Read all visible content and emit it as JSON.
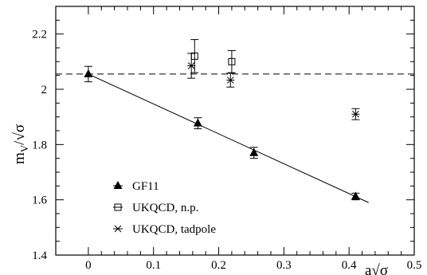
{
  "chart_data": {
    "type": "scatter",
    "xlabel": "a√σ",
    "ylabel": "m_V/√σ",
    "xlim": [
      -0.05,
      0.5
    ],
    "ylim": [
      1.4,
      2.3
    ],
    "x_ticks": [
      0,
      0.1,
      0.2,
      0.3,
      0.4,
      0.5
    ],
    "x_tick_labels": [
      "0",
      "0.1",
      "0.2",
      "0.3",
      "0.4",
      "0.5"
    ],
    "y_ticks": [
      1.4,
      1.6,
      1.8,
      2.0,
      2.2
    ],
    "y_tick_labels": [
      "1.4",
      "1.6",
      "1.8",
      "2",
      "2.2"
    ],
    "grid": false,
    "legend_position": "bottom-left",
    "series": [
      {
        "name": "GF11",
        "marker": "filled-triangle",
        "points": [
          {
            "x": 0.0,
            "y": 2.055,
            "err": 0.028
          },
          {
            "x": 0.168,
            "y": 1.877,
            "err": 0.02
          },
          {
            "x": 0.254,
            "y": 1.77,
            "err": 0.02
          },
          {
            "x": 0.41,
            "y": 1.612,
            "err": 0.012
          }
        ]
      },
      {
        "name": "UKQCD, n.p.",
        "marker": "open-square",
        "points": [
          {
            "x": 0.163,
            "y": 2.12,
            "err": 0.06
          },
          {
            "x": 0.22,
            "y": 2.1,
            "err": 0.04
          }
        ]
      },
      {
        "name": "UKQCD, tadpole",
        "marker": "cross-x",
        "points": [
          {
            "x": 0.158,
            "y": 2.085,
            "err": 0.045
          },
          {
            "x": 0.218,
            "y": 2.033,
            "err": 0.025
          },
          {
            "x": 0.41,
            "y": 1.91,
            "err": 0.02
          }
        ]
      }
    ],
    "fit_line": {
      "x": [
        0.0,
        0.43
      ],
      "y": [
        2.055,
        1.59
      ]
    },
    "reference_line": {
      "y": 2.055,
      "style": "dashed"
    }
  }
}
